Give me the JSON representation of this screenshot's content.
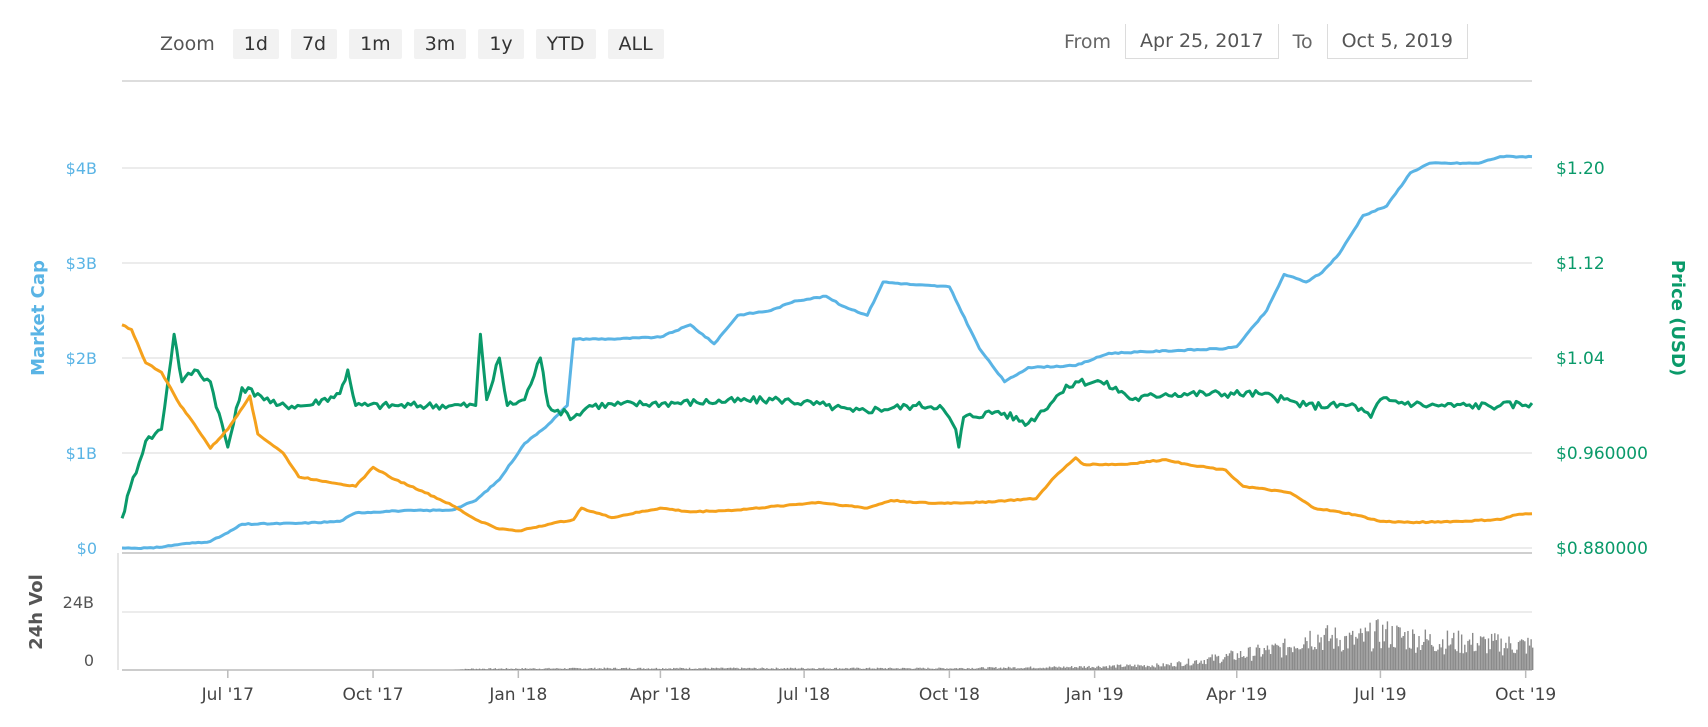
{
  "toolbar": {
    "zoom_label": "Zoom",
    "zoom_buttons": [
      "1d",
      "7d",
      "1m",
      "3m",
      "1y",
      "YTD",
      "ALL"
    ],
    "from_label": "From",
    "from_value": "Apr 25, 2017",
    "to_label": "To",
    "to_value": "Oct 5, 2019"
  },
  "colors": {
    "market_cap": "#5ab4e5",
    "price": "#0a9a6a",
    "orange": "#f5a11c",
    "volume": "#8a8a8a",
    "grid": "#e6e6e6"
  },
  "chart_data": {
    "type": "line",
    "left_axis": {
      "label": "Market Cap",
      "ticks": [
        "$0",
        "$1B",
        "$2B",
        "$3B",
        "$4B"
      ],
      "ylim": [
        0,
        4000000000
      ]
    },
    "right_axis": {
      "label": "Price (USD)",
      "ticks": [
        "$0.880000",
        "$0.960000",
        "$1.04",
        "$1.12",
        "$1.20"
      ],
      "ylim": [
        0.88,
        1.2
      ]
    },
    "volume_axis": {
      "label": "24h Vol",
      "ticks": [
        "0",
        "24B"
      ],
      "ylim": [
        0,
        24000000000
      ]
    },
    "x_axis": {
      "range": [
        "2017-04-25",
        "2019-10-05"
      ],
      "ticks": [
        {
          "date": "2017-07-01",
          "label": "Jul '17"
        },
        {
          "date": "2017-10-01",
          "label": "Oct '17"
        },
        {
          "date": "2018-01-01",
          "label": "Jan '18"
        },
        {
          "date": "2018-04-01",
          "label": "Apr '18"
        },
        {
          "date": "2018-07-01",
          "label": "Jul '18"
        },
        {
          "date": "2018-10-01",
          "label": "Oct '18"
        },
        {
          "date": "2019-01-01",
          "label": "Jan '19"
        },
        {
          "date": "2019-04-01",
          "label": "Apr '19"
        },
        {
          "date": "2019-07-01",
          "label": "Jul '19"
        },
        {
          "date": "2019-10-01",
          "label": "Oct '19"
        }
      ]
    },
    "series": [
      {
        "axis": "left",
        "color_key": "market_cap",
        "points": [
          [
            "2017-04-25",
            0.0
          ],
          [
            "2017-05-15",
            0.0
          ],
          [
            "2017-06-01",
            0.04
          ],
          [
            "2017-06-20",
            0.07
          ],
          [
            "2017-07-01",
            0.16
          ],
          [
            "2017-07-10",
            0.25
          ],
          [
            "2017-08-15",
            0.26
          ],
          [
            "2017-09-10",
            0.28
          ],
          [
            "2017-09-20",
            0.37
          ],
          [
            "2017-10-15",
            0.39
          ],
          [
            "2017-11-20",
            0.4
          ],
          [
            "2017-12-05",
            0.5
          ],
          [
            "2017-12-20",
            0.72
          ],
          [
            "2018-01-05",
            1.1
          ],
          [
            "2018-01-20",
            1.3
          ],
          [
            "2018-02-01",
            1.5
          ],
          [
            "2018-02-05",
            2.2
          ],
          [
            "2018-03-01",
            2.2
          ],
          [
            "2018-04-01",
            2.22
          ],
          [
            "2018-04-20",
            2.35
          ],
          [
            "2018-05-05",
            2.15
          ],
          [
            "2018-05-20",
            2.45
          ],
          [
            "2018-06-10",
            2.5
          ],
          [
            "2018-06-25",
            2.6
          ],
          [
            "2018-07-15",
            2.65
          ],
          [
            "2018-07-25",
            2.55
          ],
          [
            "2018-08-10",
            2.45
          ],
          [
            "2018-08-20",
            2.8
          ],
          [
            "2018-09-10",
            2.77
          ],
          [
            "2018-10-01",
            2.75
          ],
          [
            "2018-10-20",
            2.1
          ],
          [
            "2018-11-05",
            1.75
          ],
          [
            "2018-11-20",
            1.9
          ],
          [
            "2018-12-20",
            1.92
          ],
          [
            "2019-01-10",
            2.05
          ],
          [
            "2019-03-25",
            2.1
          ],
          [
            "2019-04-01",
            2.12
          ],
          [
            "2019-04-20",
            2.5
          ],
          [
            "2019-05-01",
            2.88
          ],
          [
            "2019-05-15",
            2.8
          ],
          [
            "2019-05-25",
            2.9
          ],
          [
            "2019-06-05",
            3.1
          ],
          [
            "2019-06-20",
            3.5
          ],
          [
            "2019-07-05",
            3.6
          ],
          [
            "2019-07-20",
            3.95
          ],
          [
            "2019-08-01",
            4.05
          ],
          [
            "2019-09-01",
            4.05
          ],
          [
            "2019-09-15",
            4.12
          ],
          [
            "2019-10-05",
            4.12
          ]
        ]
      },
      {
        "axis": "right",
        "color_key": "price",
        "points": [
          [
            "2017-04-25",
            0.905
          ],
          [
            "2017-04-30",
            0.93
          ],
          [
            "2017-05-10",
            0.97
          ],
          [
            "2017-05-20",
            0.98
          ],
          [
            "2017-05-28",
            1.06
          ],
          [
            "2017-06-02",
            1.02
          ],
          [
            "2017-06-10",
            1.03
          ],
          [
            "2017-06-20",
            1.02
          ],
          [
            "2017-07-01",
            0.965
          ],
          [
            "2017-07-10",
            1.015
          ],
          [
            "2017-07-20",
            1.01
          ],
          [
            "2017-08-01",
            1.0
          ],
          [
            "2017-08-20",
            1.0
          ],
          [
            "2017-09-10",
            1.01
          ],
          [
            "2017-09-15",
            1.03
          ],
          [
            "2017-09-20",
            1.0
          ],
          [
            "2017-10-15",
            1.0
          ],
          [
            "2017-11-20",
            1.0
          ],
          [
            "2017-12-05",
            1.0
          ],
          [
            "2017-12-08",
            1.06
          ],
          [
            "2017-12-12",
            1.005
          ],
          [
            "2017-12-20",
            1.04
          ],
          [
            "2017-12-25",
            1.0
          ],
          [
            "2018-01-05",
            1.005
          ],
          [
            "2018-01-15",
            1.04
          ],
          [
            "2018-01-20",
            1.0
          ],
          [
            "2018-02-05",
            0.99
          ],
          [
            "2018-02-15",
            1.0
          ],
          [
            "2018-06-15",
            1.005
          ],
          [
            "2018-07-15",
            1.0
          ],
          [
            "2018-08-01",
            0.995
          ],
          [
            "2018-09-10",
            1.0
          ],
          [
            "2018-09-25",
            1.0
          ],
          [
            "2018-10-05",
            0.98
          ],
          [
            "2018-10-07",
            0.965
          ],
          [
            "2018-10-10",
            0.99
          ],
          [
            "2018-11-01",
            0.995
          ],
          [
            "2018-11-20",
            0.985
          ],
          [
            "2018-12-10",
            1.01
          ],
          [
            "2018-12-20",
            1.02
          ],
          [
            "2019-01-05",
            1.02
          ],
          [
            "2019-01-20",
            1.01
          ],
          [
            "2019-01-25",
            1.005
          ],
          [
            "2019-02-15",
            1.01
          ],
          [
            "2019-04-15",
            1.01
          ],
          [
            "2019-05-15",
            1.0
          ],
          [
            "2019-06-15",
            1.0
          ],
          [
            "2019-06-25",
            0.99
          ],
          [
            "2019-07-01",
            1.005
          ],
          [
            "2019-08-01",
            1.0
          ],
          [
            "2019-09-15",
            1.0
          ],
          [
            "2019-10-05",
            1.002
          ]
        ]
      },
      {
        "axis": "left",
        "color_key": "orange",
        "points": [
          [
            "2017-04-25",
            2.35
          ],
          [
            "2017-05-01",
            2.3
          ],
          [
            "2017-05-10",
            1.95
          ],
          [
            "2017-05-20",
            1.85
          ],
          [
            "2017-06-01",
            1.5
          ],
          [
            "2017-06-10",
            1.3
          ],
          [
            "2017-06-20",
            1.05
          ],
          [
            "2017-07-01",
            1.25
          ],
          [
            "2017-07-15",
            1.6
          ],
          [
            "2017-07-20",
            1.2
          ],
          [
            "2017-08-05",
            1.0
          ],
          [
            "2017-08-15",
            0.75
          ],
          [
            "2017-09-01",
            0.7
          ],
          [
            "2017-09-20",
            0.65
          ],
          [
            "2017-10-01",
            0.85
          ],
          [
            "2017-10-15",
            0.72
          ],
          [
            "2017-11-01",
            0.6
          ],
          [
            "2017-11-20",
            0.45
          ],
          [
            "2017-12-05",
            0.3
          ],
          [
            "2017-12-20",
            0.2
          ],
          [
            "2018-01-01",
            0.18
          ],
          [
            "2018-01-20",
            0.25
          ],
          [
            "2018-02-05",
            0.3
          ],
          [
            "2018-02-10",
            0.42
          ],
          [
            "2018-03-01",
            0.32
          ],
          [
            "2018-04-01",
            0.42
          ],
          [
            "2018-04-20",
            0.38
          ],
          [
            "2018-05-20",
            0.4
          ],
          [
            "2018-06-20",
            0.45
          ],
          [
            "2018-07-10",
            0.48
          ],
          [
            "2018-08-10",
            0.42
          ],
          [
            "2018-08-25",
            0.5
          ],
          [
            "2018-09-20",
            0.47
          ],
          [
            "2018-10-20",
            0.48
          ],
          [
            "2018-11-25",
            0.52
          ],
          [
            "2018-12-05",
            0.72
          ],
          [
            "2018-12-20",
            0.95
          ],
          [
            "2018-12-25",
            0.88
          ],
          [
            "2019-01-20",
            0.88
          ],
          [
            "2019-02-15",
            0.93
          ],
          [
            "2019-03-01",
            0.88
          ],
          [
            "2019-03-25",
            0.82
          ],
          [
            "2019-04-05",
            0.65
          ],
          [
            "2019-05-05",
            0.58
          ],
          [
            "2019-05-20",
            0.42
          ],
          [
            "2019-06-15",
            0.35
          ],
          [
            "2019-07-01",
            0.28
          ],
          [
            "2019-07-20",
            0.27
          ],
          [
            "2019-08-20",
            0.28
          ],
          [
            "2019-09-15",
            0.3
          ],
          [
            "2019-09-25",
            0.35
          ],
          [
            "2019-10-05",
            0.36
          ]
        ]
      }
    ],
    "volume_profile": [
      [
        "2017-04-25",
        0
      ],
      [
        "2017-11-20",
        0
      ],
      [
        "2017-12-01",
        0.5
      ],
      [
        "2018-03-01",
        0.7
      ],
      [
        "2018-10-01",
        0.7
      ],
      [
        "2018-12-15",
        1.2
      ],
      [
        "2019-02-15",
        2.0
      ],
      [
        "2019-03-15",
        4.5
      ],
      [
        "2019-04-01",
        6.0
      ],
      [
        "2019-05-01",
        9.0
      ],
      [
        "2019-05-15",
        14.0
      ],
      [
        "2019-06-15",
        12.0
      ],
      [
        "2019-07-01",
        15.0
      ],
      [
        "2019-08-01",
        12.0
      ],
      [
        "2019-09-01",
        11.0
      ],
      [
        "2019-10-05",
        10.0
      ]
    ]
  }
}
